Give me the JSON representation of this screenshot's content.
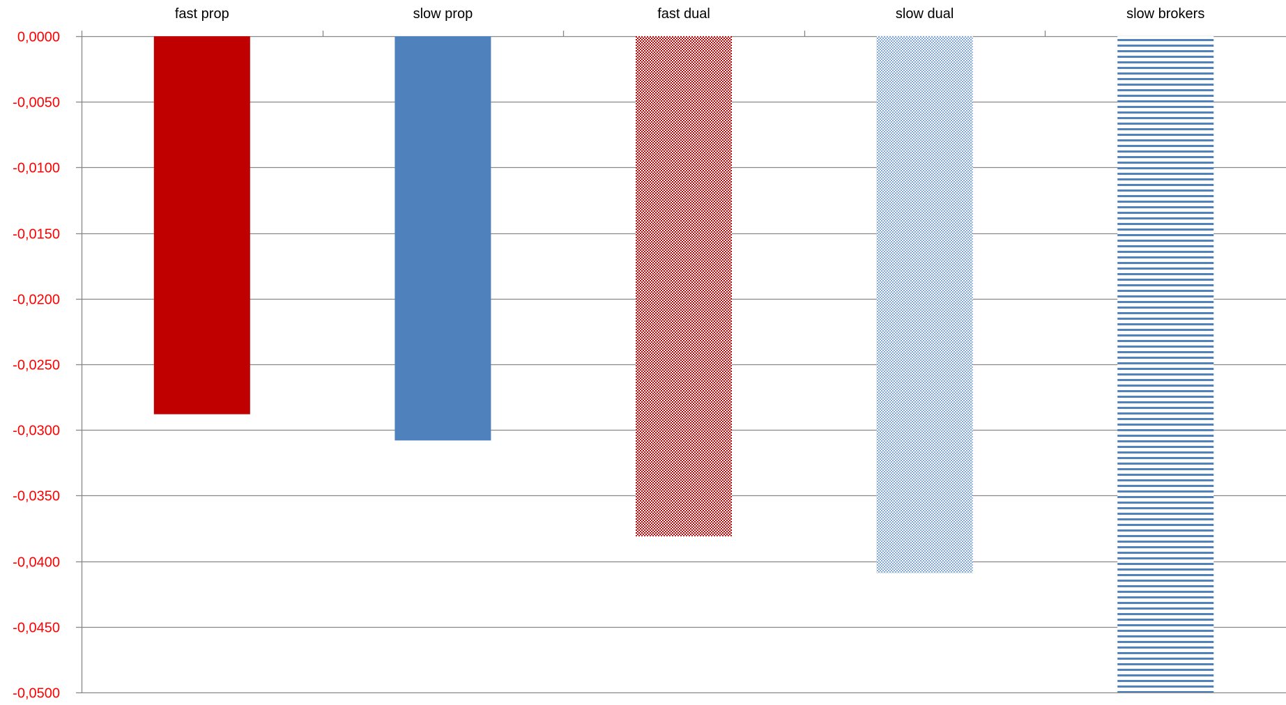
{
  "chart_data": {
    "type": "bar",
    "title": "",
    "xlabel": "",
    "ylabel": "",
    "categories": [
      "fast prop",
      "slow prop",
      "fast dual",
      "slow dual",
      "slow brokers"
    ],
    "values": [
      -0.0288,
      -0.0308,
      -0.0381,
      -0.0409,
      -0.05
    ],
    "ylim": [
      -0.05,
      0
    ],
    "yticks": [
      "0,0000",
      "-0,0050",
      "-0,0100",
      "-0,0150",
      "-0,0200",
      "-0,0250",
      "-0,0300",
      "-0,0350",
      "-0,0400",
      "-0,0450",
      "-0,0500"
    ],
    "ytick_values": [
      0,
      -0.005,
      -0.01,
      -0.015,
      -0.02,
      -0.025,
      -0.03,
      -0.035,
      -0.04,
      -0.045,
      -0.05
    ],
    "grid": true,
    "category_labels_position": "top",
    "bar_styles": [
      {
        "fill": "solid",
        "color": "#C00000"
      },
      {
        "fill": "solid",
        "color": "#4F81BD"
      },
      {
        "fill": "dotted",
        "color": "#C00000"
      },
      {
        "fill": "dotted",
        "color": "#4F81BD"
      },
      {
        "fill": "horizontal-lines",
        "color": "#4F81BD"
      }
    ],
    "colors": {
      "tick_label": "#FF0000",
      "category_label": "#000000",
      "grid": "#878787",
      "axis": "#878787"
    }
  }
}
